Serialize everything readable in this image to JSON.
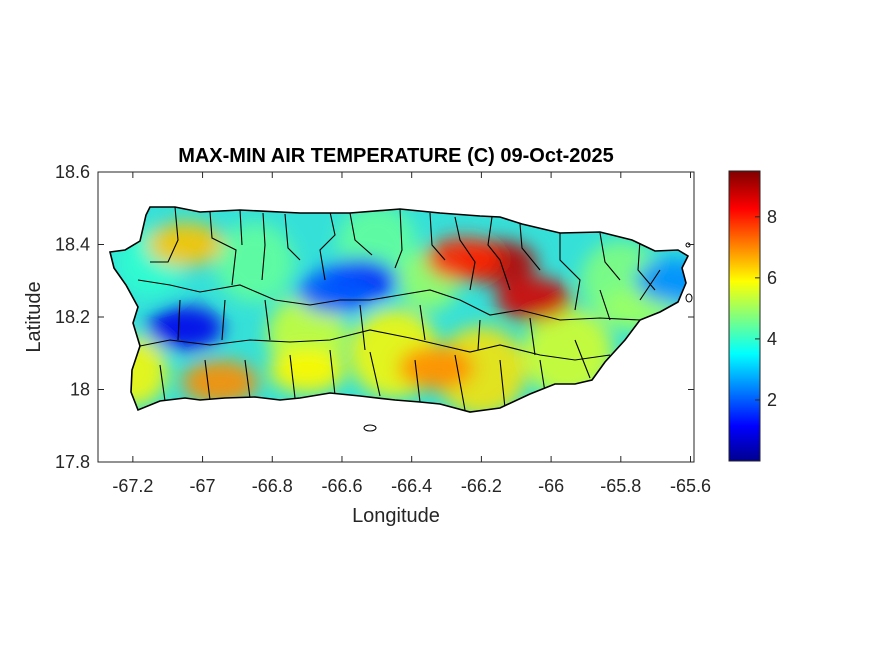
{
  "title": "MAX-MIN AIR TEMPERATURE (C) 09-Oct-2025",
  "xlabel": "Longitude",
  "ylabel": "Latitude",
  "x_ticks": [
    "-67.2",
    "-67",
    "-66.8",
    "-66.6",
    "-66.4",
    "-66.2",
    "-66",
    "-65.8",
    "-65.6"
  ],
  "y_ticks": [
    "18.6",
    "18.4",
    "18.2",
    "18",
    "17.8"
  ],
  "colorbar_ticks": [
    "8",
    "6",
    "4",
    "2"
  ],
  "colormap": "jet",
  "colors": {
    "axes": "#262626",
    "outline": "#000000",
    "background": "#ffffff"
  },
  "chart_data": {
    "type": "heatmap",
    "title": "MAX-MIN AIR TEMPERATURE (C) 09-Oct-2025",
    "xlabel": "Longitude",
    "ylabel": "Latitude",
    "xlim": [
      -67.3,
      -65.59
    ],
    "ylim": [
      17.8,
      18.6
    ],
    "clim": [
      0,
      9.5
    ],
    "colorbar_ticks": [
      2,
      4,
      6,
      8
    ],
    "grid": false,
    "region": "Puerto Rico municipalities",
    "hotspots": [
      {
        "lon": -66.15,
        "lat": 18.35,
        "value": 9.0
      },
      {
        "lon": -66.05,
        "lat": 18.25,
        "value": 8.7
      },
      {
        "lon": -66.25,
        "lat": 18.36,
        "value": 8.0
      },
      {
        "lon": -66.33,
        "lat": 18.06,
        "value": 7.0
      },
      {
        "lon": -67.05,
        "lat": 18.4,
        "value": 6.5
      },
      {
        "lon": -66.95,
        "lat": 18.02,
        "value": 7.0
      },
      {
        "lon": -66.55,
        "lat": 18.3,
        "value": 1.5
      },
      {
        "lon": -67.05,
        "lat": 18.17,
        "value": 1.0
      },
      {
        "lon": -66.62,
        "lat": 18.27,
        "value": 2.0
      },
      {
        "lon": -66.7,
        "lat": 18.05,
        "value": 6.0
      },
      {
        "lon": -65.75,
        "lat": 18.22,
        "value": 5.0
      },
      {
        "lon": -65.65,
        "lat": 18.3,
        "value": 2.5
      }
    ]
  }
}
